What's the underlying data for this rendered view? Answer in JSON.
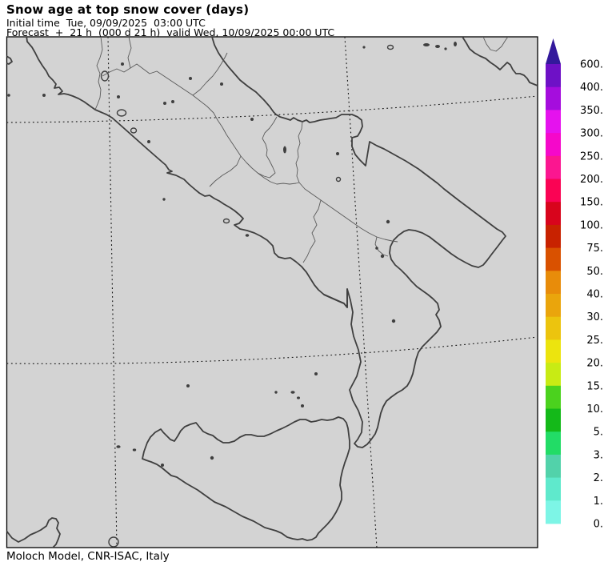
{
  "header": {
    "title": "Snow age at top snow cover (days)",
    "init_line": "Initial time  Tue, 09/09/2025  03:00 UTC",
    "forecast_line": "Forecast  +  21 h  (000 d 21 h)  valid Wed, 10/09/2025 00:00 UTC"
  },
  "footer": {
    "caption": "Moloch Model, CNR-ISAC, Italy"
  },
  "map": {
    "background_color": "#d3d3d3",
    "frame_color": "#000000",
    "coast_color": "#3f3f3f",
    "grid_style": "dotted"
  },
  "colorbar": {
    "labels_top_to_bottom": [
      "600.",
      "400.",
      "350.",
      "300.",
      "250.",
      "200.",
      "150.",
      "100.",
      "75.",
      "50.",
      "40.",
      "30.",
      "25.",
      "20.",
      "15.",
      "10.",
      "5.",
      "3.",
      "2.",
      "1.",
      "0."
    ],
    "colors_top_to_bottom": [
      "#6e11c6",
      "#a50ddd",
      "#e512ee",
      "#f508ca",
      "#fb1690",
      "#fa0354",
      "#d8041c",
      "#c82200",
      "#d95100",
      "#e88c0a",
      "#eaa50c",
      "#ecc40e",
      "#ece40e",
      "#c8eb14",
      "#4bd21e",
      "#14b919",
      "#22dc66",
      "#52d2aa",
      "#5fe9cc",
      "#7df5e6"
    ],
    "arrow_color": "#33199c"
  },
  "chart_data": {
    "type": "heatmap",
    "title": "Snow age at top snow cover (days)",
    "region": "Southern Italy and Sicily",
    "legend_levels_days": [
      0,
      1,
      2,
      3,
      5,
      10,
      15,
      20,
      25,
      30,
      40,
      50,
      75,
      100,
      150,
      200,
      250,
      300,
      350,
      400,
      600
    ],
    "legend_colors_low_to_high": [
      "#7df5e6",
      "#5fe9cc",
      "#52d2aa",
      "#22dc66",
      "#14b919",
      "#4bd21e",
      "#c8eb14",
      "#ece40e",
      "#ecc40e",
      "#eaa50c",
      "#e88c0a",
      "#d95100",
      "#c82200",
      "#d8041c",
      "#fa0354",
      "#fb1690",
      "#f508ca",
      "#e512ee",
      "#a50ddd",
      "#6e11c6"
    ],
    "above_max_arrow_color": "#33199c",
    "plotted_values": "none visible (map area uniform gray - no snow cover shaded at this forecast time)"
  }
}
